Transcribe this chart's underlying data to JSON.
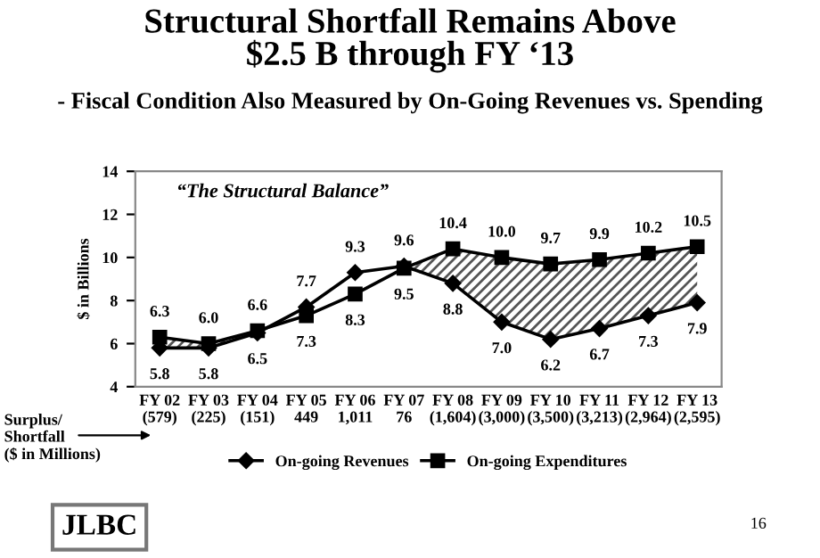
{
  "chart_data": {
    "type": "line",
    "title": "Structural Shortfall Remains Above\n$2.5 B through FY ‘13",
    "subtitle": "- Fiscal Condition Also Measured by On-Going Revenues vs. Spending",
    "ylabel": "$ in Billions",
    "categories": [
      "FY 02\n(579)",
      "FY 03\n(225)",
      "FY 04\n(151)",
      "FY 05\n449",
      "FY 06\n1,011",
      "FY 07\n76",
      "FY 08\n(1,604)",
      "FY 09\n(3,000)",
      "FY 10\n(3,500)",
      "FY 11\n(3,213)",
      "FY 12\n(2,964)",
      "FY 13\n(2,595)"
    ],
    "series": [
      {
        "name": "On-going Revenues",
        "color": "#000000",
        "marker": "diamond",
        "values": [
          5.8,
          5.8,
          6.5,
          7.7,
          9.3,
          9.6,
          8.8,
          7.0,
          6.2,
          6.7,
          7.3,
          7.9
        ],
        "value_labels": [
          "5.8",
          "5.8",
          "6.5",
          "7.7",
          "9.3",
          "9.6",
          "8.8",
          "7.0",
          "6.2",
          "6.7",
          "7.3",
          "7.9"
        ]
      },
      {
        "name": "On-going Expenditures",
        "color": "#000000",
        "marker": "square",
        "values": [
          6.3,
          6.0,
          6.6,
          7.3,
          8.3,
          9.5,
          10.4,
          10.0,
          9.7,
          9.9,
          10.2,
          10.5
        ],
        "value_labels": [
          "6.3",
          "6.0",
          "6.6",
          "7.3",
          "8.3",
          "9.5",
          "10.4",
          "10.0",
          "9.7",
          "9.9",
          "10.2",
          "10.5"
        ],
        "lower": [
          5.8,
          5.8,
          6.5,
          null,
          null,
          9.5,
          8.8,
          7.0,
          6.2,
          6.7,
          7.3,
          7.9
        ],
        "upper": [
          6.3,
          6.0,
          6.6,
          null,
          null,
          9.5,
          10.4,
          10.0,
          9.7,
          9.9,
          10.2,
          10.5
        ]
      }
    ],
    "ylim": [
      4,
      14
    ],
    "yticks": [
      4,
      6,
      8,
      10,
      12,
      14
    ],
    "grid": false,
    "legend": "bottom",
    "line_style": "solid",
    "annotations": [
      "“The Structural Balance”",
      "Surplus/\nShortfall\n($ in Millions)",
      "JLBC",
      "16"
    ]
  }
}
